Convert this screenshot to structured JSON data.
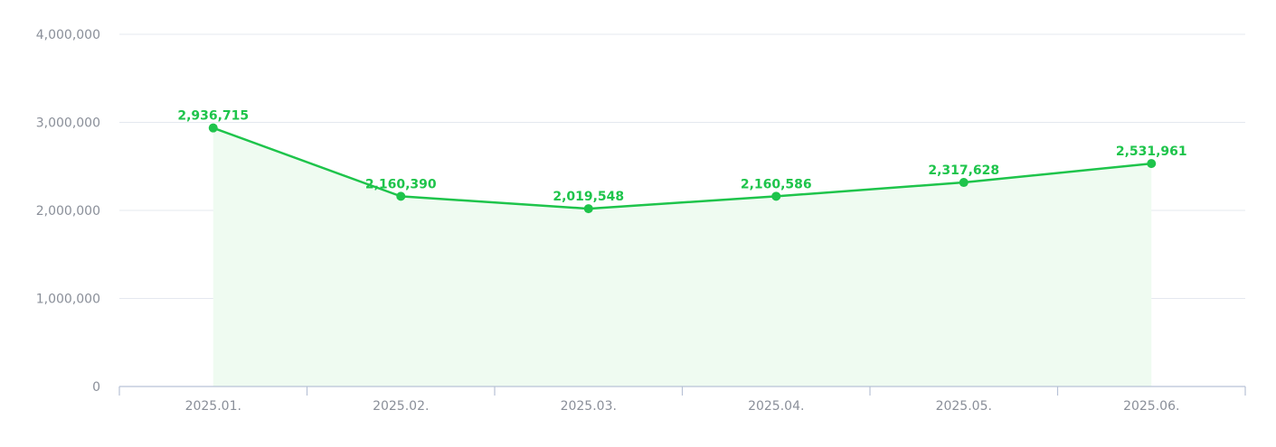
{
  "chart_data": {
    "type": "area",
    "categories": [
      "2025.01.",
      "2025.02.",
      "2025.03.",
      "2025.04.",
      "2025.05.",
      "2025.06."
    ],
    "values": [
      2936715,
      2160390,
      2019548,
      2160586,
      2317628,
      2531961
    ],
    "value_labels": [
      "2,936,715",
      "2,160,390",
      "2,019,548",
      "2,160,586",
      "2,317,628",
      "2,531,961"
    ],
    "ylim": [
      0,
      4000000
    ],
    "yticks": [
      0,
      1000000,
      2000000,
      3000000,
      4000000
    ],
    "ytick_labels": [
      "0",
      "1,000,000",
      "2,000,000",
      "3,000,000",
      "4,000,000"
    ],
    "grid": true,
    "title": "",
    "xlabel": "",
    "ylabel": "",
    "colors": {
      "line": "#1ec44b",
      "area": "#effbf1",
      "label": "#1ec44b"
    }
  }
}
